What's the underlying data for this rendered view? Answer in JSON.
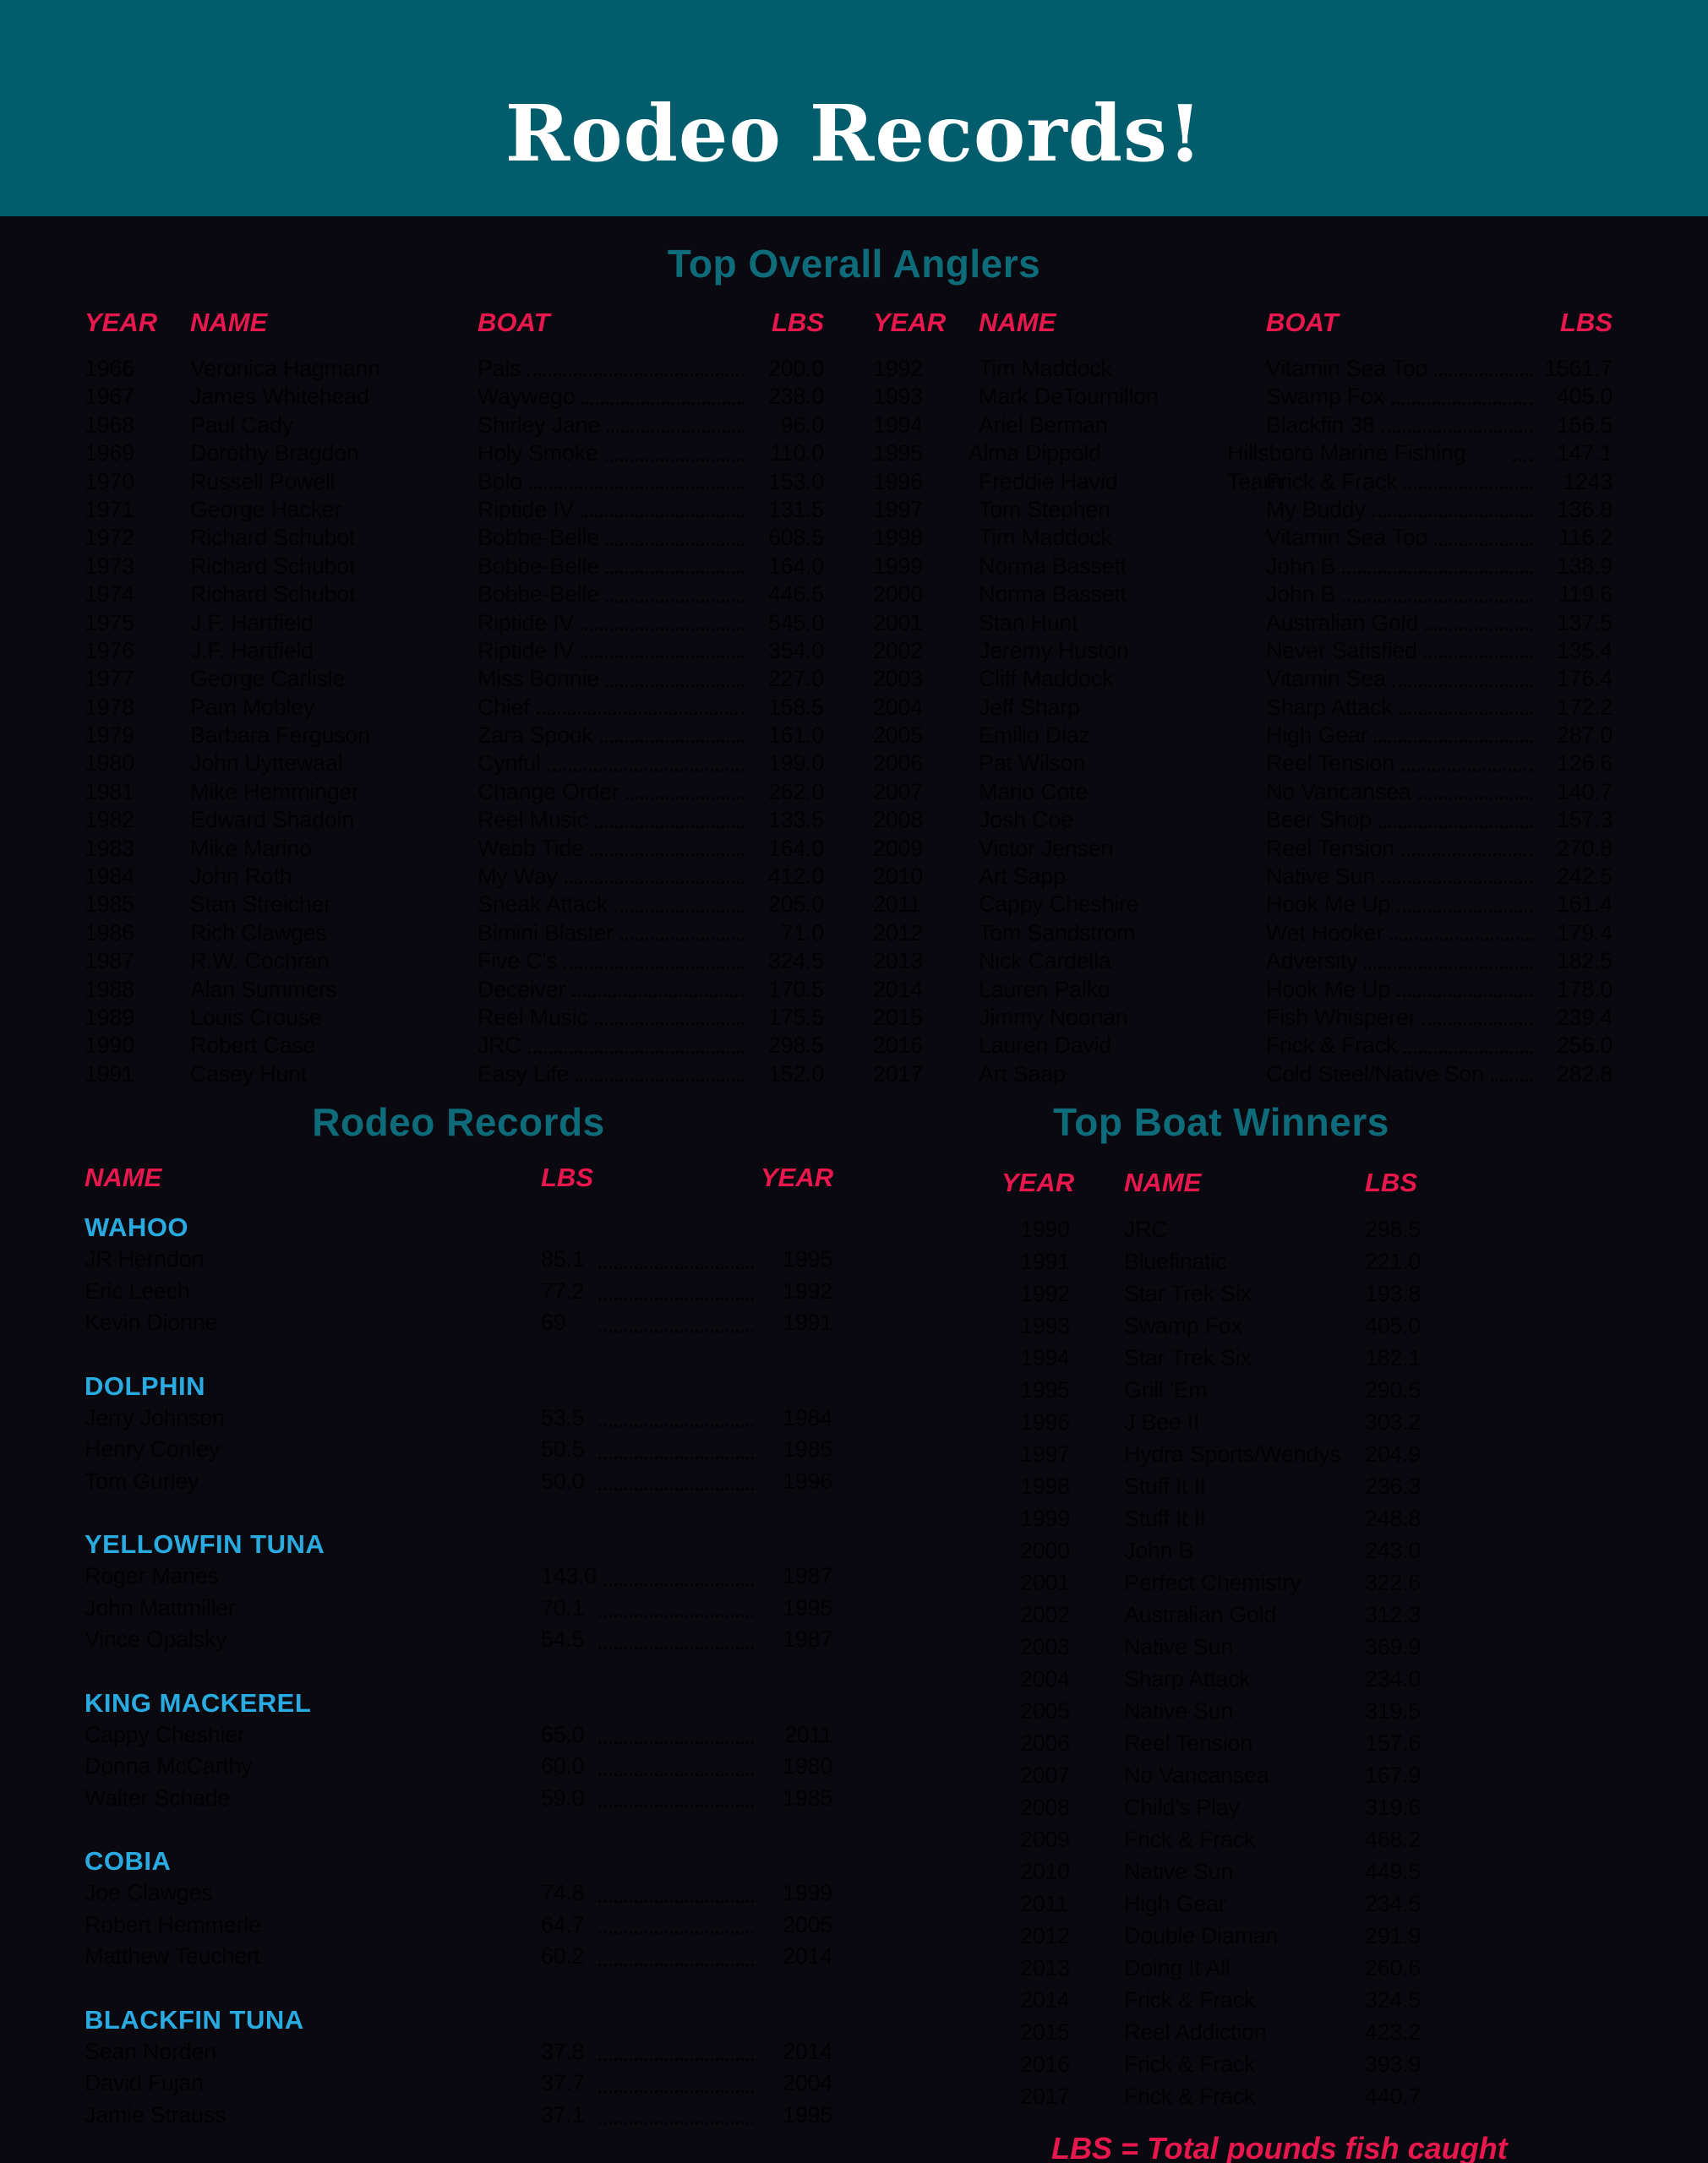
{
  "banner": {
    "title": "Rodeo Records!"
  },
  "colors": {
    "banner_teal": "#015d6c",
    "section_teal": "#0e6b7a",
    "header_red": "#e8174d",
    "category_cyan": "#29abe2",
    "page_background": "#0a090f",
    "body_text": "#020205",
    "banner_text": "#ffffff"
  },
  "top_overall_anglers": {
    "title": "Top Overall Anglers",
    "headers": {
      "year": "YEAR",
      "name": "NAME",
      "boat": "BOAT",
      "lbs": "LBS"
    },
    "left_rows": [
      {
        "year": "1966",
        "name": "Veronica Hagmann",
        "boat": "Pals",
        "lbs": "200.0"
      },
      {
        "year": "1967",
        "name": "James Whitehead",
        "boat": "Waywego",
        "lbs": "238.0"
      },
      {
        "year": "1968",
        "name": "Paul Cady",
        "boat": "Shirley Jane",
        "lbs": "96.0"
      },
      {
        "year": "1969",
        "name": "Dorothy Bragdon",
        "boat": "Holy Smoke",
        "lbs": "110.0"
      },
      {
        "year": "1970",
        "name": "Russell Powell",
        "boat": "Bolo",
        "lbs": "153.0"
      },
      {
        "year": "1971",
        "name": "George Hacker",
        "boat": "Riptide IV",
        "lbs": "131.5"
      },
      {
        "year": "1972",
        "name": "Richard Schubot",
        "boat": "Bobbe-Belle",
        "lbs": "608.5"
      },
      {
        "year": "1973",
        "name": "Richard Schubot",
        "boat": "Bobbe-Belle",
        "lbs": "164.0"
      },
      {
        "year": "1974",
        "name": "Richard Schubot",
        "boat": "Bobbe-Belle",
        "lbs": "446.5"
      },
      {
        "year": "1975",
        "name": "J.F. Hartfield",
        "boat": "Riptide IV",
        "lbs": "545.0"
      },
      {
        "year": "1976",
        "name": "J.F. Hartfield",
        "boat": "Riptide IV",
        "lbs": "354.0"
      },
      {
        "year": "1977",
        "name": "George Carlisle",
        "boat": "Miss Bonnie",
        "lbs": "227.0"
      },
      {
        "year": "1978",
        "name": "Pam Mobley",
        "boat": "Chief",
        "lbs": "158.5"
      },
      {
        "year": "1979",
        "name": "Barbara Ferguson",
        "boat": "Zara Spook",
        "lbs": "161.0"
      },
      {
        "year": "1980",
        "name": "John Uyttewaal",
        "boat": "Cynful",
        "lbs": "199.0"
      },
      {
        "year": "1981",
        "name": "Mike Hemminger",
        "boat": "Change Order",
        "lbs": "262.0"
      },
      {
        "year": "1982",
        "name": "Edward Shadoin",
        "boat": "Reel Music",
        "lbs": "133.5"
      },
      {
        "year": "1983",
        "name": "Mike Marino",
        "boat": "Webb Tide",
        "lbs": "164.0"
      },
      {
        "year": "1984",
        "name": "John Roth",
        "boat": "My Way",
        "lbs": "412.0"
      },
      {
        "year": "1985",
        "name": "Stan Streicher",
        "boat": "Sneak Attack",
        "lbs": "205.0"
      },
      {
        "year": "1986",
        "name": "Rich Clawges",
        "boat": "Bimini Blaster",
        "lbs": "71.0"
      },
      {
        "year": "1987",
        "name": "R.W. Cochran",
        "boat": "Five C's",
        "lbs": "324.5"
      },
      {
        "year": "1988",
        "name": "Alan Summers",
        "boat": "Deceiver",
        "lbs": "170.5"
      },
      {
        "year": "1989",
        "name": "Louis Crouse",
        "boat": "Reel Music",
        "lbs": "175.5"
      },
      {
        "year": "1990",
        "name": "Robert Case",
        "boat": "JRC",
        "lbs": "298.5"
      },
      {
        "year": "1991",
        "name": "Casey Hunt",
        "boat": "Easy Life",
        "lbs": "152.0"
      }
    ],
    "right_rows": [
      {
        "year": "1992",
        "name": "Tim Maddock",
        "boat": "Vitamin Sea Too",
        "lbs": "1561.7"
      },
      {
        "year": "1993",
        "name": "Mark DeTournillon",
        "boat": "Swamp Fox",
        "lbs": "405.0"
      },
      {
        "year": "1994",
        "name": "Ariel Berman",
        "boat": "Blackfin 38",
        "lbs": "156.5"
      },
      {
        "year": "1995",
        "name": "Alma Dippold",
        "boat": "Hillsboro Marine Fishing Team",
        "lbs": "147.1"
      },
      {
        "year": "1996",
        "name": "Freddie Havid",
        "boat": "Frick & Frack",
        "lbs": "1243"
      },
      {
        "year": "1997",
        "name": "Tom Stephen",
        "boat": "My Buddy",
        "lbs": "136.8"
      },
      {
        "year": "1998",
        "name": "Tim Maddock",
        "boat": "Vitamin Sea Too",
        "lbs": "116.2"
      },
      {
        "year": "1999",
        "name": "Norma Bassett",
        "boat": "John B",
        "lbs": "138.9"
      },
      {
        "year": "2000",
        "name": "Norma Bassett",
        "boat": "John B",
        "lbs": "119.6"
      },
      {
        "year": "2001",
        "name": "Stan Hunt",
        "boat": "Australian Gold",
        "lbs": "137.5"
      },
      {
        "year": "2002",
        "name": "Jeremy Huston",
        "boat": "Never Satisfied",
        "lbs": "135.4"
      },
      {
        "year": "2003",
        "name": "Cliff Maddock",
        "boat": "Vitamin Sea",
        "lbs": "176.4"
      },
      {
        "year": "2004",
        "name": "Jeff Sharp",
        "boat": "Sharp Attack",
        "lbs": "172.2"
      },
      {
        "year": "2005",
        "name": "Emilio Diaz",
        "boat": "High Gear",
        "lbs": "287.0"
      },
      {
        "year": "2006",
        "name": "Pat Wilson",
        "boat": "Reel Tension",
        "lbs": "126.6"
      },
      {
        "year": "2007",
        "name": "Mario Cote",
        "boat": "No Vancansea",
        "lbs": "140.7"
      },
      {
        "year": "2008",
        "name": "Josh Coe",
        "boat": "Beer Shop",
        "lbs": "157.3"
      },
      {
        "year": "2009",
        "name": "Victor Jensen",
        "boat": "Reel Tension",
        "lbs": "270.8"
      },
      {
        "year": "2010",
        "name": "Art Sapp",
        "boat": "Native Sun",
        "lbs": "242.5"
      },
      {
        "year": "2011",
        "name": "Cappy Cheshire",
        "boat": "Hook Me Up",
        "lbs": "161.4"
      },
      {
        "year": "2012",
        "name": "Tom Sandstrom",
        "boat": "Wet Hooker",
        "lbs": "179.4"
      },
      {
        "year": "2013",
        "name": "Nick Cardella",
        "boat": "Adversity",
        "lbs": "182.5"
      },
      {
        "year": "2014",
        "name": "Lauren Palko",
        "boat": "Hook Me Up",
        "lbs": "178.0"
      },
      {
        "year": "2015",
        "name": "Jimmy Noonan",
        "boat": "Fish Whisperer",
        "lbs": "239.4"
      },
      {
        "year": "2016",
        "name": "Lauren  David",
        "boat": "Frick & Frack",
        "lbs": "256.0"
      },
      {
        "year": "2017",
        "name": "Art Saap",
        "boat": "Cold Steel/Native Son",
        "lbs": "282.8"
      }
    ]
  },
  "rodeo_records": {
    "title": "Rodeo Records",
    "headers": {
      "name": "NAME",
      "lbs": "LBS",
      "year": "YEAR"
    },
    "categories": [
      {
        "label": "WAHOO",
        "rows": [
          {
            "name": "JR Herndon",
            "lbs": "85.1",
            "year": "1995"
          },
          {
            "name": "Eric Leech",
            "lbs": "77.2",
            "year": "1992"
          },
          {
            "name": "Kevin Dionne",
            "lbs": "69",
            "year": "1991"
          }
        ]
      },
      {
        "label": "DOLPHIN",
        "rows": [
          {
            "name": "Jerry Johnson",
            "lbs": "53.5",
            "year": "1984"
          },
          {
            "name": "Henry Conley",
            "lbs": "50.5",
            "year": "1985"
          },
          {
            "name": "Tom Gurley",
            "lbs": "50.0",
            "year": "1996"
          }
        ]
      },
      {
        "label": "YELLOWFIN TUNA",
        "rows": [
          {
            "name": "Roger Manes",
            "lbs": "143.0",
            "year": "1987"
          },
          {
            "name": "John Mattmiller",
            "lbs": "70.1",
            "year": "1995"
          },
          {
            "name": "Vince Opalsky",
            "lbs": "54.5",
            "year": "1987"
          }
        ]
      },
      {
        "label": "KING MACKEREL",
        "rows": [
          {
            "name": "Cappy Cheshier",
            "lbs": "65.0",
            "year": "2011"
          },
          {
            "name": "Donna McCarthy",
            "lbs": "60.0",
            "year": "1980"
          },
          {
            "name": "Walter Schade",
            "lbs": "59.0",
            "year": "1985"
          }
        ]
      },
      {
        "label": "COBIA",
        "rows": [
          {
            "name": "Joe Clawges",
            "lbs": "74.8",
            "year": "1999"
          },
          {
            "name": "Robert Hemmerle",
            "lbs": "64.7",
            "year": "2005"
          },
          {
            "name": "Matthew Teuchert",
            "lbs": "60.2",
            "year": "2014"
          }
        ]
      },
      {
        "label": "BLACKFIN TUNA",
        "rows": [
          {
            "name": "Sean Norden",
            "lbs": "37.8",
            "year": "2014"
          },
          {
            "name": "David Fujan",
            "lbs": "37.7",
            "year": "2004"
          },
          {
            "name": "Jamie Strauss",
            "lbs": "37.1",
            "year": "1995"
          }
        ]
      }
    ]
  },
  "top_boat_winners": {
    "title": "Top Boat Winners",
    "headers": {
      "year": "YEAR",
      "name": "NAME",
      "lbs": "LBS"
    },
    "rows": [
      {
        "year": "1990",
        "name": "JRC",
        "lbs": "298.5"
      },
      {
        "year": "1991",
        "name": "Bluefinatic",
        "lbs": "221.0"
      },
      {
        "year": "1992",
        "name": "Star Trek Six",
        "lbs": "193.8"
      },
      {
        "year": "1993",
        "name": "Swamp Fox",
        "lbs": "405.0"
      },
      {
        "year": "1994",
        "name": "Star Trek Six",
        "lbs": "182.1"
      },
      {
        "year": "1995",
        "name": "Grill 'Em",
        "lbs": "290.5"
      },
      {
        "year": "1996",
        "name": "J Bee II",
        "lbs": "303.2"
      },
      {
        "year": "1997",
        "name": "Hydra Sports/Wendys",
        "lbs": "204.9"
      },
      {
        "year": "1998",
        "name": "Stuff It II",
        "lbs": "236.3"
      },
      {
        "year": "1999",
        "name": "Stuff It II",
        "lbs": "248.8"
      },
      {
        "year": "2000",
        "name": "John B",
        "lbs": "243.0"
      },
      {
        "year": "2001",
        "name": "Perfect Chemistry",
        "lbs": "322.6"
      },
      {
        "year": "2002",
        "name": "Australian Gold",
        "lbs": "312.3"
      },
      {
        "year": "2003",
        "name": "Native Sun",
        "lbs": "369.9"
      },
      {
        "year": "2004",
        "name": "Sharp Attack",
        "lbs": "234.0"
      },
      {
        "year": "2005",
        "name": "Native Sun",
        "lbs": "319.5"
      },
      {
        "year": "2006",
        "name": "Reel Tension",
        "lbs": "157.6"
      },
      {
        "year": "2007",
        "name": "No Vancansea",
        "lbs": "167.9"
      },
      {
        "year": "2008",
        "name": "Child's Play",
        "lbs": "319.6"
      },
      {
        "year": "2009",
        "name": "Frick & Frack",
        "lbs": "468.2"
      },
      {
        "year": "2010",
        "name": "Native Sun",
        "lbs": "449.5"
      },
      {
        "year": "2011",
        "name": "High Gear",
        "lbs": "234.5"
      },
      {
        "year": "2012",
        "name": "Double Diaman",
        "lbs": "291.9"
      },
      {
        "year": "2013",
        "name": "Doing It All",
        "lbs": "260.6"
      },
      {
        "year": "2014",
        "name": "Frick & Frack",
        "lbs": "324.5"
      },
      {
        "year": "2015",
        "name": "Reel Addiction",
        "lbs": "423.2"
      },
      {
        "year": "2016",
        "name": "Frick & Frack",
        "lbs": "393.9"
      },
      {
        "year": "2017",
        "name": "Frick & Frack",
        "lbs": "440.7"
      }
    ]
  },
  "footer": {
    "note": "LBS = Total pounds fish caught"
  }
}
